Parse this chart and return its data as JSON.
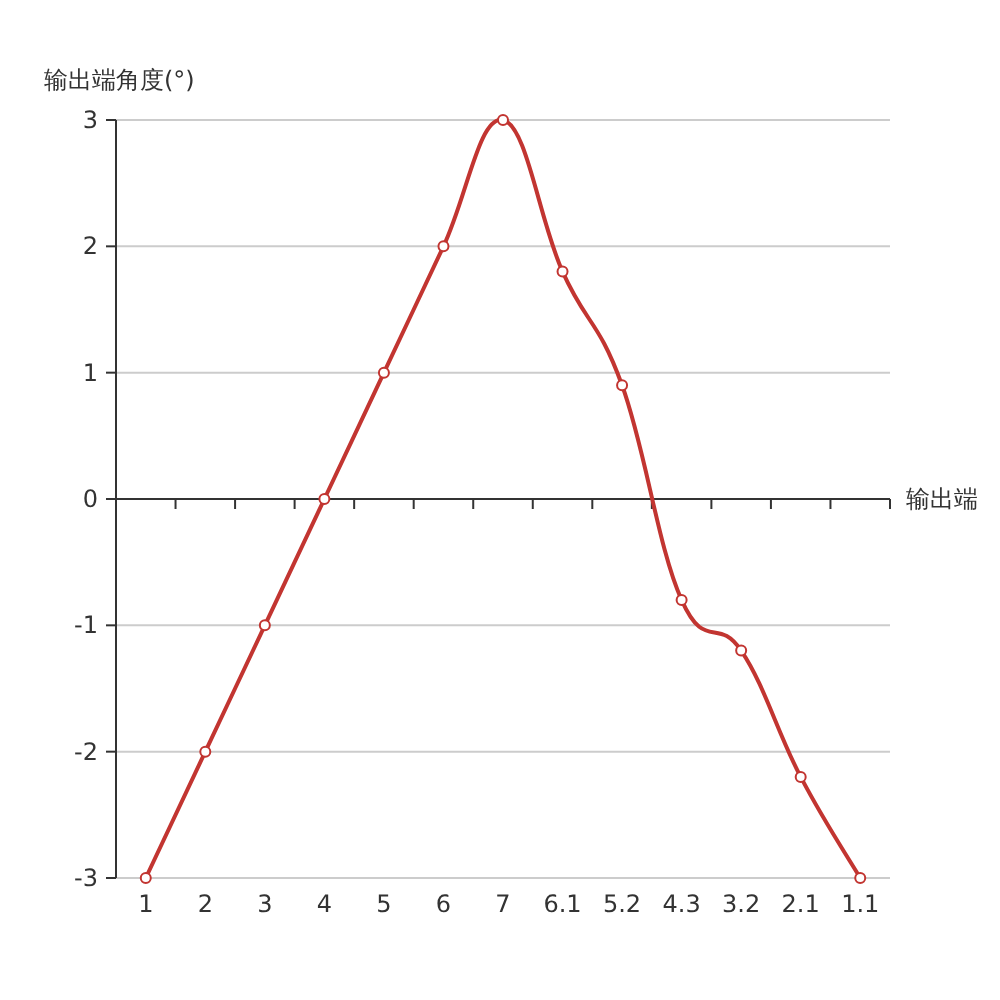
{
  "chart_data": {
    "type": "line",
    "ylabel": "输出端角度(°)",
    "xlabel": "输出端",
    "categories": [
      "1",
      "2",
      "3",
      "4",
      "5",
      "6",
      "7",
      "6.1",
      "5.2",
      "4.3",
      "3.2",
      "2.1",
      "1.1"
    ],
    "series": [
      {
        "color": "#c23531",
        "values": [
          -3,
          -2,
          -1,
          0,
          1,
          2,
          3,
          1.8,
          0.9,
          -0.8,
          -1.2,
          -2.2,
          -3
        ]
      }
    ],
    "ylim": [
      -3,
      3
    ],
    "yticks": [
      -3,
      -2,
      -1,
      0,
      1,
      2,
      3
    ],
    "grid": "y",
    "marker": "circle",
    "line_style": "solid"
  }
}
